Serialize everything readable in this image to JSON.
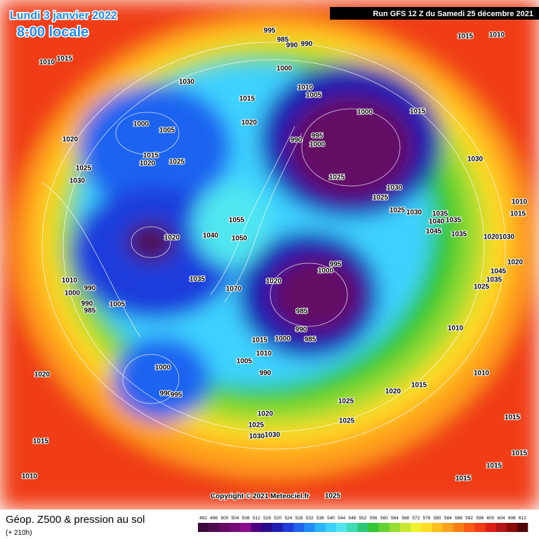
{
  "header": {
    "date": "Lundi 3 janvier 2022",
    "time": "8:00 locale",
    "run": "Run GFS 12 Z du Samedi 25 décembre 2021"
  },
  "footer": {
    "title": "Géop. Z500 & pression au sol",
    "subtitle": "(+ 210h)",
    "copyright": "Copyright © 2021 Meteociel.fr"
  },
  "legend": {
    "ticks": [
      492,
      496,
      500,
      504,
      508,
      512,
      516,
      520,
      524,
      528,
      532,
      536,
      540,
      544,
      548,
      552,
      556,
      560,
      564,
      568,
      572,
      576,
      580,
      584,
      588,
      592,
      596,
      600,
      604,
      608,
      612
    ],
    "colors": [
      "#3c0a3c",
      "#500a50",
      "#640a64",
      "#780a78",
      "#8c0a8c",
      "#4b0082",
      "#2a0a8c",
      "#1e1eb4",
      "#1e3cdc",
      "#1e64f0",
      "#1e8cff",
      "#28b4ff",
      "#3cd2ff",
      "#50e6f0",
      "#3cdcb4",
      "#28c878",
      "#32c832",
      "#64d232",
      "#96dc32",
      "#c8e632",
      "#f0f032",
      "#ffdc28",
      "#ffbe1e",
      "#ffa01e",
      "#ff7d14",
      "#ff5a14",
      "#f03c14",
      "#dc1e14",
      "#b41414",
      "#8c0a0a",
      "#500505"
    ]
  },
  "isobar_labels": [
    "1010",
    "1015",
    "1030",
    "995",
    "985",
    "990",
    "990",
    "1000",
    "1015",
    "1010",
    "1015",
    "1010",
    "1005",
    "1000",
    "1015",
    "1020",
    "990",
    "995",
    "1000",
    "1000",
    "1005",
    "1020",
    "1015",
    "1020",
    "1025",
    "1025",
    "1030",
    "1025",
    "1030",
    "1025",
    "1025",
    "1030",
    "1035",
    "1040",
    "1035",
    "1045",
    "1035",
    "1030",
    "1055",
    "1050",
    "1020",
    "1040",
    "1020",
    "1030",
    "1010",
    "1015",
    "1020",
    "1045",
    "1035",
    "1025",
    "995",
    "1000",
    "1020",
    "1035",
    "1010",
    "990",
    "1000",
    "1005",
    "990",
    "985",
    "1070",
    "985",
    "990",
    "1015",
    "1000",
    "985",
    "1010",
    "1010",
    "1005",
    "1000",
    "990",
    "1020",
    "990",
    "995",
    "1020",
    "1015",
    "1010",
    "1025",
    "1020",
    "1025",
    "1030",
    "1030",
    "1025",
    "1015",
    "1010",
    "1015",
    "1015",
    "1015",
    "1015",
    "1025"
  ]
}
